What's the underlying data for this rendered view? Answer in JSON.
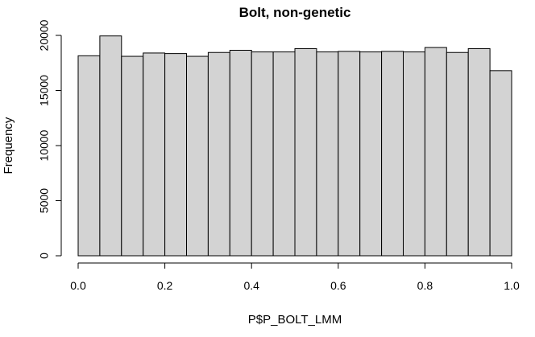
{
  "chart_data": {
    "type": "bar",
    "subtype": "histogram",
    "title": "Bolt, non-genetic",
    "xlabel": "P$P_BOLT_LMM",
    "ylabel": "Frequency",
    "bin_width": 0.05,
    "bins": [
      {
        "start": 0.0,
        "end": 0.05,
        "count": 18150
      },
      {
        "start": 0.05,
        "end": 0.1,
        "count": 19950
      },
      {
        "start": 0.1,
        "end": 0.15,
        "count": 18100
      },
      {
        "start": 0.15,
        "end": 0.2,
        "count": 18400
      },
      {
        "start": 0.2,
        "end": 0.25,
        "count": 18350
      },
      {
        "start": 0.25,
        "end": 0.3,
        "count": 18100
      },
      {
        "start": 0.3,
        "end": 0.35,
        "count": 18450
      },
      {
        "start": 0.35,
        "end": 0.4,
        "count": 18650
      },
      {
        "start": 0.4,
        "end": 0.45,
        "count": 18500
      },
      {
        "start": 0.45,
        "end": 0.5,
        "count": 18500
      },
      {
        "start": 0.5,
        "end": 0.55,
        "count": 18800
      },
      {
        "start": 0.55,
        "end": 0.6,
        "count": 18500
      },
      {
        "start": 0.6,
        "end": 0.65,
        "count": 18550
      },
      {
        "start": 0.65,
        "end": 0.7,
        "count": 18500
      },
      {
        "start": 0.7,
        "end": 0.75,
        "count": 18550
      },
      {
        "start": 0.75,
        "end": 0.8,
        "count": 18500
      },
      {
        "start": 0.8,
        "end": 0.85,
        "count": 18900
      },
      {
        "start": 0.85,
        "end": 0.9,
        "count": 18450
      },
      {
        "start": 0.9,
        "end": 0.95,
        "count": 18800
      },
      {
        "start": 0.95,
        "end": 1.0,
        "count": 16800
      }
    ],
    "xlim": [
      0,
      1
    ],
    "ylim": [
      0,
      20000
    ],
    "x_ticks": [
      {
        "value": 0.0,
        "label": "0.0"
      },
      {
        "value": 0.2,
        "label": "0.2"
      },
      {
        "value": 0.4,
        "label": "0.4"
      },
      {
        "value": 0.6,
        "label": "0.6"
      },
      {
        "value": 0.8,
        "label": "0.8"
      },
      {
        "value": 1.0,
        "label": "1.0"
      }
    ],
    "y_ticks": [
      {
        "value": 0,
        "label": "0"
      },
      {
        "value": 5000,
        "label": "5000"
      },
      {
        "value": 10000,
        "label": "10000"
      },
      {
        "value": 15000,
        "label": "15000"
      },
      {
        "value": 20000,
        "label": "20000"
      }
    ],
    "grid": false,
    "bar_fill": "#d3d3d3",
    "bar_stroke": "#000000"
  }
}
